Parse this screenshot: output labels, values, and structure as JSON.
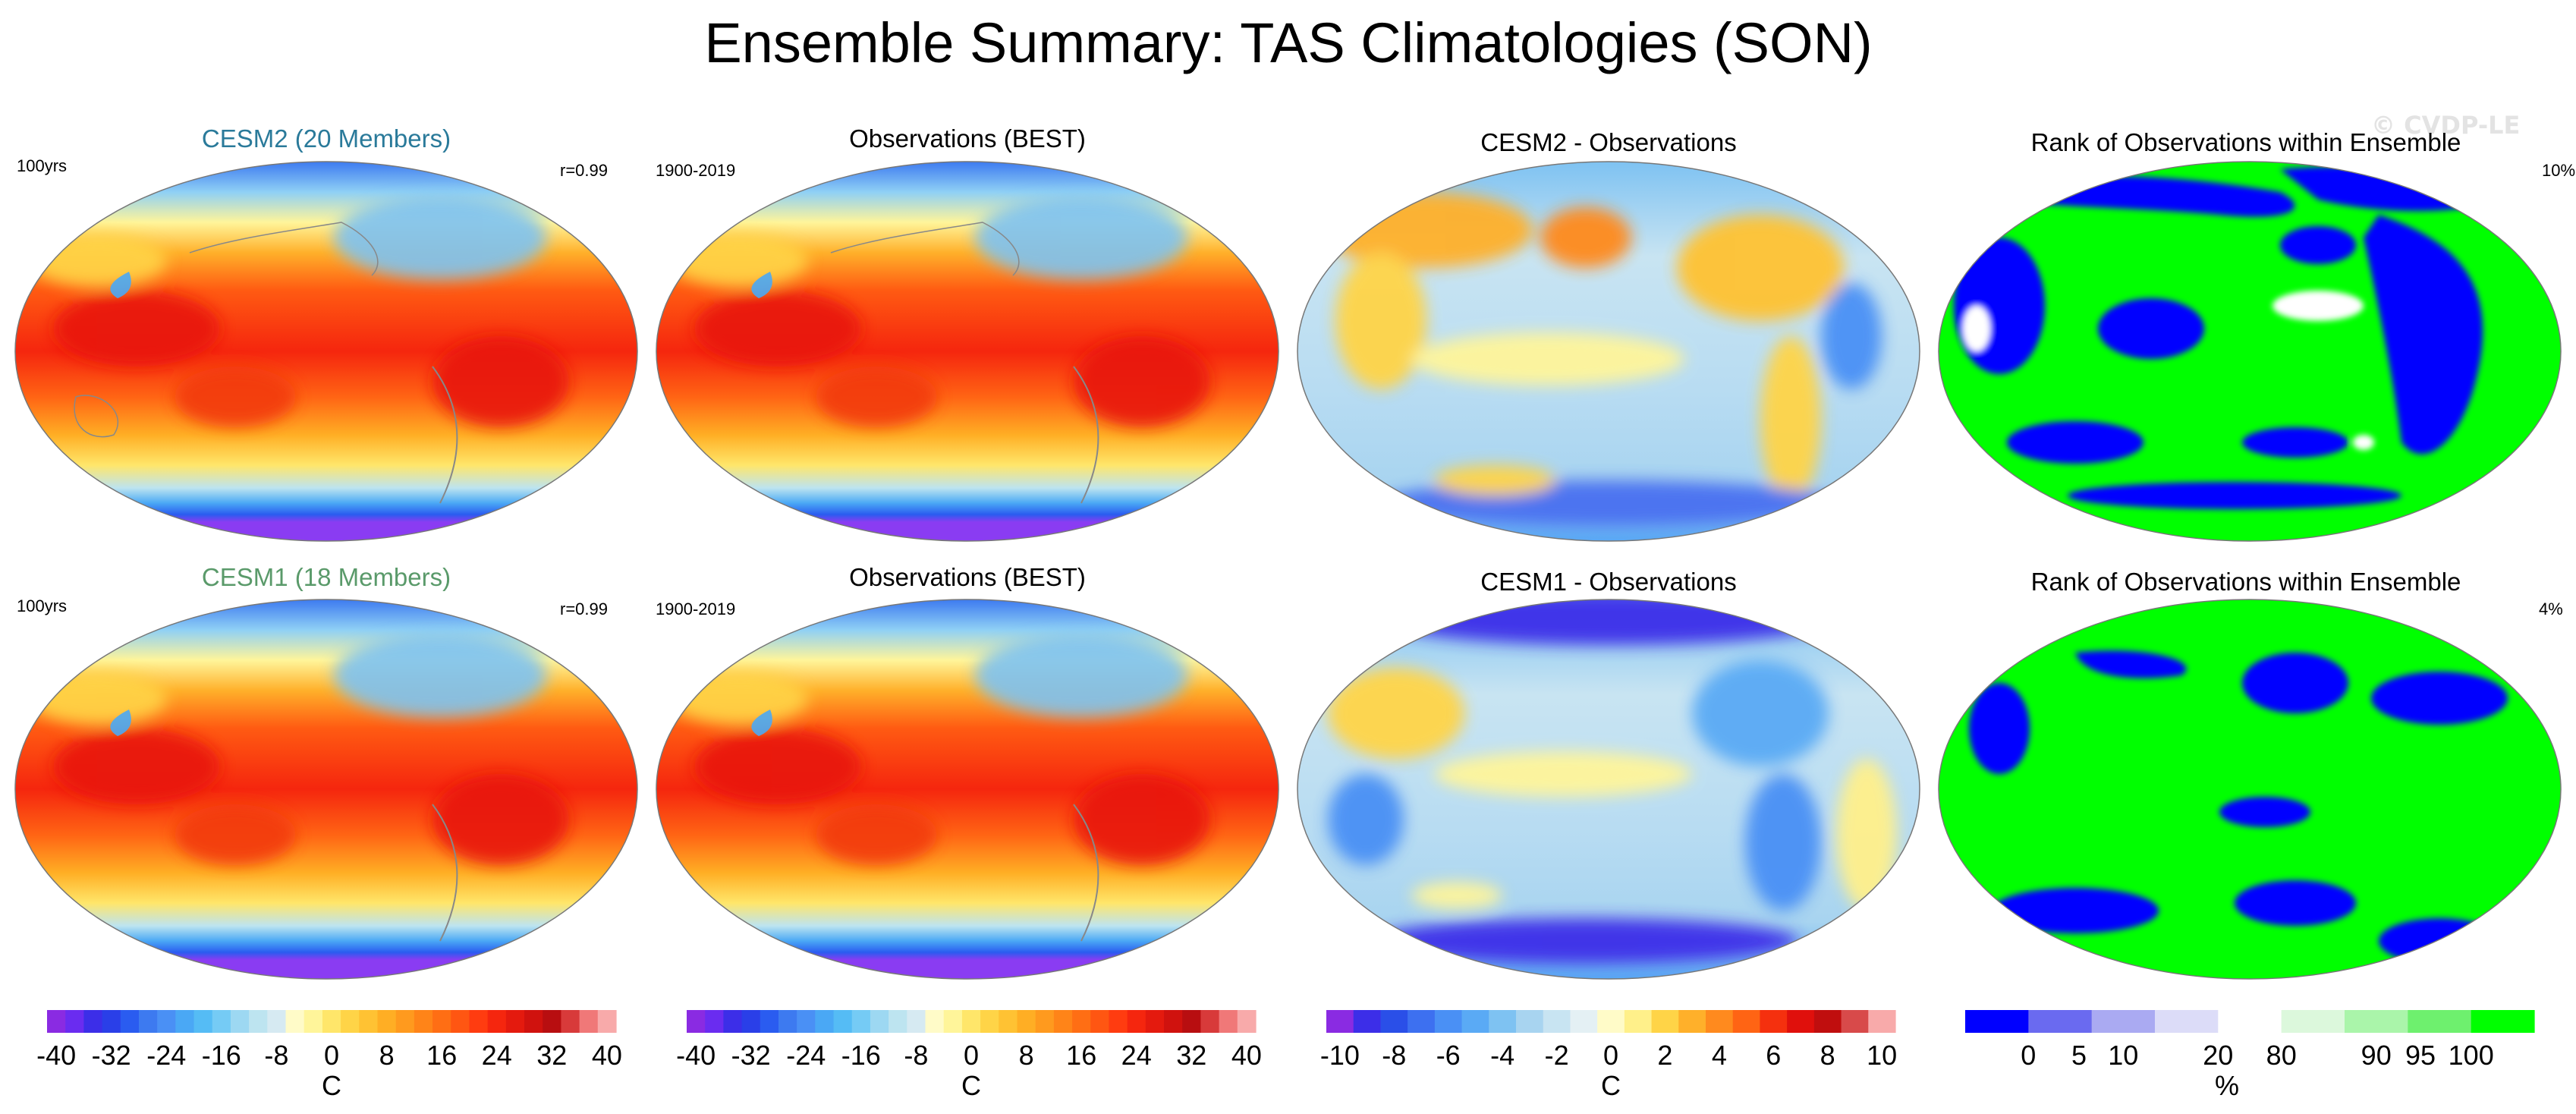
{
  "title": "Ensemble Summary: TAS Climatologies (SON)",
  "watermark": "© CVDP-LE",
  "colors": {
    "cesm2_title": "#2a7a9a",
    "cesm1_title": "#5a9a6a",
    "rank_blue": "#0000ff",
    "rank_green": "#00ff00",
    "ocean_pole_purple": "#8a3cf2"
  },
  "rows": [
    {
      "panels": [
        {
          "kind": "clim",
          "title": "CESM2 (20 Members)",
          "title_color": "#2a7a9a",
          "left_label": "100yrs",
          "right_label": "r=0.99"
        },
        {
          "kind": "clim",
          "title": "Observations (BEST)",
          "title_color": "#000000",
          "left_label": "1900-2019",
          "right_label": ""
        },
        {
          "kind": "diff",
          "title": "CESM2 - Observations",
          "title_color": "#000000",
          "left_label": "",
          "right_label": ""
        },
        {
          "kind": "rank",
          "title": "Rank of Observations within Ensemble",
          "title_color": "#000000",
          "left_label": "",
          "right_label": "10%"
        }
      ]
    },
    {
      "panels": [
        {
          "kind": "clim",
          "title": "CESM1 (18 Members)",
          "title_color": "#5a9a6a",
          "left_label": "100yrs",
          "right_label": "r=0.99"
        },
        {
          "kind": "clim",
          "title": "Observations (BEST)",
          "title_color": "#000000",
          "left_label": "1900-2019",
          "right_label": ""
        },
        {
          "kind": "diff",
          "title": "CESM1 - Observations",
          "title_color": "#000000",
          "left_label": "",
          "right_label": ""
        },
        {
          "kind": "rank",
          "title": "Rank of Observations within Ensemble",
          "title_color": "#000000",
          "left_label": "",
          "right_label": "4%"
        }
      ]
    }
  ],
  "colorbars": [
    {
      "unit": "C",
      "labels": [
        "-40",
        "-32",
        "-24",
        "-16",
        "-8",
        "0",
        "8",
        "16",
        "24",
        "32",
        "40"
      ],
      "colors": [
        "#8a2be2",
        "#6a2cf0",
        "#3c2ee8",
        "#2a3fe8",
        "#2a5cf0",
        "#3d7af0",
        "#4a90f5",
        "#4aa8f5",
        "#55bcf5",
        "#75cbf5",
        "#9dd8f2",
        "#bde4f0",
        "#d6eaf2",
        "#fffbc8",
        "#fff59a",
        "#ffe66a",
        "#ffd447",
        "#ffc233",
        "#ffae24",
        "#ff9a1e",
        "#ff8418",
        "#ff6e14",
        "#ff5612",
        "#ff3c10",
        "#f5260e",
        "#e41a0e",
        "#d0120e",
        "#b80e10",
        "#d83a3a",
        "#f07878",
        "#f8aaaa"
      ]
    },
    {
      "unit": "C",
      "labels": [
        "-40",
        "-32",
        "-24",
        "-16",
        "-8",
        "0",
        "8",
        "16",
        "24",
        "32",
        "40"
      ],
      "colors": [
        "#8a2be2",
        "#6a2cf0",
        "#3c2ee8",
        "#2a3fe8",
        "#2a5cf0",
        "#3d7af0",
        "#4a90f5",
        "#4aa8f5",
        "#55bcf5",
        "#75cbf5",
        "#9dd8f2",
        "#bde4f0",
        "#d6eaf2",
        "#fffbc8",
        "#fff59a",
        "#ffe66a",
        "#ffd447",
        "#ffc233",
        "#ffae24",
        "#ff9a1e",
        "#ff8418",
        "#ff6e14",
        "#ff5612",
        "#ff3c10",
        "#f5260e",
        "#e41a0e",
        "#d0120e",
        "#b80e10",
        "#d83a3a",
        "#f07878",
        "#f8aaaa"
      ]
    },
    {
      "unit": "C",
      "labels": [
        "-10",
        "-8",
        "-6",
        "-4",
        "-2",
        "0",
        "2",
        "4",
        "6",
        "8",
        "10"
      ],
      "colors": [
        "#8a2be2",
        "#3c2ee8",
        "#2a4fe8",
        "#3d70f0",
        "#4a90f5",
        "#5aaaf5",
        "#7ec2f2",
        "#a8d4f0",
        "#c8e4f2",
        "#e4f0f4",
        "#fffbc8",
        "#fff08a",
        "#ffd447",
        "#ffb02a",
        "#ff8a1e",
        "#ff6414",
        "#f5300e",
        "#e0100c",
        "#c00e0e",
        "#d84a4a",
        "#f8aaaa"
      ]
    },
    {
      "unit": "%",
      "labels": [
        "0",
        "5",
        "10",
        "20",
        "80",
        "90",
        "95",
        "100"
      ],
      "colors": [
        "#0000ff",
        "#6a6af0",
        "#aaaaf2",
        "#dcdcf8",
        "#ffffff",
        "#dcf8dc",
        "#aaf5aa",
        "#6ef06e",
        "#00ff00"
      ]
    }
  ],
  "chart_data": [
    {
      "type": "heatmap",
      "title": "CESM2 (20 Members)",
      "period": "100yrs",
      "pattern_correlation": 0.99,
      "units": "C",
      "range": [
        -40,
        40
      ],
      "projection": "Robinson (Pacific-centered)"
    },
    {
      "type": "heatmap",
      "title": "Observations (BEST)",
      "period": "1900-2019",
      "units": "C",
      "range": [
        -40,
        40
      ]
    },
    {
      "type": "heatmap",
      "title": "CESM2 - Observations",
      "units": "C",
      "range": [
        -10,
        10
      ]
    },
    {
      "type": "heatmap",
      "title": "Rank of Observations within Ensemble",
      "units": "%",
      "range": [
        0,
        100
      ],
      "area_outside_range_percent": 10
    },
    {
      "type": "heatmap",
      "title": "CESM1 (18 Members)",
      "period": "100yrs",
      "pattern_correlation": 0.99,
      "units": "C",
      "range": [
        -40,
        40
      ]
    },
    {
      "type": "heatmap",
      "title": "Observations (BEST)",
      "period": "1900-2019",
      "units": "C",
      "range": [
        -40,
        40
      ]
    },
    {
      "type": "heatmap",
      "title": "CESM1 - Observations",
      "units": "C",
      "range": [
        -10,
        10
      ]
    },
    {
      "type": "heatmap",
      "title": "Rank of Observations within Ensemble",
      "units": "%",
      "range": [
        0,
        100
      ],
      "area_outside_range_percent": 4
    }
  ]
}
